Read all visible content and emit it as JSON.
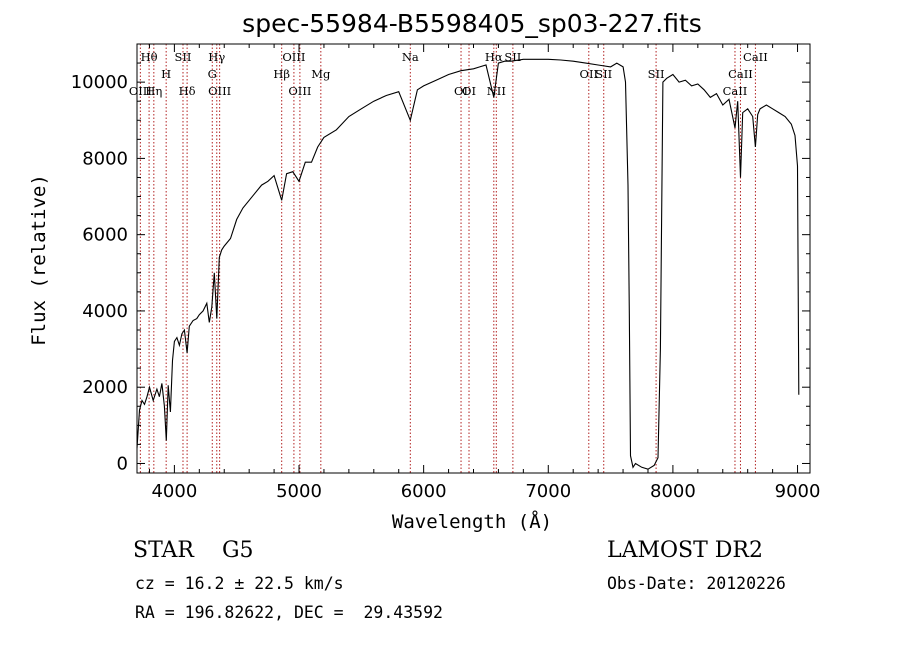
{
  "chart_data": {
    "type": "line",
    "title": "spec-55984-B5598405_sp03-227.fits",
    "xlabel": "Wavelength (Å)",
    "ylabel": "Flux (relative)",
    "xlim": [
      3700,
      9100
    ],
    "ylim": [
      -250,
      11000
    ],
    "xticks": [
      4000,
      5000,
      6000,
      7000,
      8000,
      9000
    ],
    "yticks": [
      0,
      2000,
      4000,
      6000,
      8000,
      10000
    ],
    "series": [
      {
        "x": [
          3700,
          3720,
          3740,
          3760,
          3780,
          3800,
          3830,
          3860,
          3880,
          3900,
          3920,
          3935,
          3950,
          3968,
          3985,
          4000,
          4020,
          4040,
          4060,
          4080,
          4102,
          4120,
          4150,
          4180,
          4200,
          4230,
          4260,
          4280,
          4300,
          4320,
          4340,
          4360,
          4380,
          4400,
          4450,
          4500,
          4550,
          4600,
          4650,
          4700,
          4750,
          4800,
          4861,
          4900,
          4950,
          5000,
          5050,
          5100,
          5150,
          5200,
          5300,
          5400,
          5500,
          5600,
          5700,
          5800,
          5893,
          5950,
          6000,
          6100,
          6200,
          6300,
          6400,
          6450,
          6500,
          6563,
          6600,
          6650,
          6700,
          6800,
          6900,
          7000,
          7100,
          7200,
          7300,
          7400,
          7500,
          7550,
          7600,
          7620,
          7640,
          7650,
          7660,
          7680,
          7700,
          7750,
          7800,
          7850,
          7880,
          7900,
          7920,
          7950,
          8000,
          8050,
          8100,
          8150,
          8200,
          8250,
          8300,
          8350,
          8400,
          8450,
          8498,
          8520,
          8542,
          8560,
          8600,
          8640,
          8662,
          8680,
          8700,
          8750,
          8800,
          8850,
          8900,
          8950,
          8980,
          9000,
          9010
        ],
        "y": [
          400,
          1400,
          1650,
          1550,
          1750,
          2000,
          1650,
          1950,
          1750,
          2100,
          1500,
          600,
          2050,
          1350,
          2700,
          3200,
          3300,
          3100,
          3400,
          3500,
          2900,
          3600,
          3750,
          3800,
          3900,
          4000,
          4200,
          3700,
          4100,
          5000,
          3800,
          5400,
          5600,
          5700,
          5900,
          6400,
          6700,
          6900,
          7100,
          7300,
          7400,
          7550,
          6900,
          7600,
          7650,
          7400,
          7900,
          7900,
          8300,
          8550,
          8750,
          9100,
          9300,
          9500,
          9650,
          9750,
          9000,
          9800,
          9900,
          10050,
          10200,
          10300,
          10350,
          10400,
          10450,
          9600,
          10500,
          10550,
          10550,
          10600,
          10600,
          10600,
          10580,
          10550,
          10500,
          10450,
          10400,
          10500,
          10400,
          10000,
          7300,
          4000,
          200,
          -100,
          0,
          -100,
          -150,
          -50,
          150,
          3000,
          10000,
          10100,
          10200,
          10000,
          10050,
          9900,
          9950,
          9800,
          9600,
          9700,
          9400,
          9550,
          8800,
          9500,
          7500,
          9200,
          9300,
          9100,
          8300,
          9150,
          9300,
          9400,
          9300,
          9200,
          9100,
          8900,
          8600,
          7800,
          1800
        ]
      }
    ],
    "lines": [
      {
        "name": "Hθ",
        "x": 3797,
        "row": 1
      },
      {
        "name": "OIII",
        "x": 3727,
        "row": 3
      },
      {
        "name": "Hη",
        "x": 3835,
        "row": 3
      },
      {
        "name": "H",
        "x": 3934,
        "row": 2
      },
      {
        "name": "SII",
        "x": 4069,
        "row": 1
      },
      {
        "name": "Hδ",
        "x": 4102,
        "row": 3
      },
      {
        "name": "Hγ",
        "x": 4340,
        "row": 1
      },
      {
        "name": "G",
        "x": 4304,
        "row": 2
      },
      {
        "name": "OIII",
        "x": 4363,
        "row": 3
      },
      {
        "name": "OIII",
        "x": 4959,
        "row": 1
      },
      {
        "name": "Hβ",
        "x": 4861,
        "row": 2
      },
      {
        "name": "OIII",
        "x": 5007,
        "row": 3
      },
      {
        "name": "Mg",
        "x": 5175,
        "row": 2
      },
      {
        "name": "Na",
        "x": 5893,
        "row": 1
      },
      {
        "name": "OI",
        "x": 6300,
        "row": 3
      },
      {
        "name": "OI",
        "x": 6364,
        "row": 3
      },
      {
        "name": "Hα",
        "x": 6563,
        "row": 1
      },
      {
        "name": "NII",
        "x": 6583,
        "row": 3
      },
      {
        "name": "SII",
        "x": 6716,
        "row": 1
      },
      {
        "name": "OII",
        "x": 7325,
        "row": 2
      },
      {
        "name": "SII",
        "x": 7445,
        "row": 2
      },
      {
        "name": "SII",
        "x": 7865,
        "row": 2
      },
      {
        "name": "CaII",
        "x": 8498,
        "row": 3
      },
      {
        "name": "CaII",
        "x": 8542,
        "row": 2
      },
      {
        "name": "CaII",
        "x": 8662,
        "row": 1
      }
    ]
  },
  "info": {
    "object": "STAR    G5",
    "survey": "LAMOST DR2",
    "cz": "cz = 16.2 ± 22.5 km/s",
    "obs_date": "Obs-Date: 20120226",
    "coords": "RA = 196.82622, DEC =  29.43592"
  },
  "colors": {
    "spectrum": "#000000",
    "line_markers": "#b22222",
    "background": "#ffffff"
  }
}
